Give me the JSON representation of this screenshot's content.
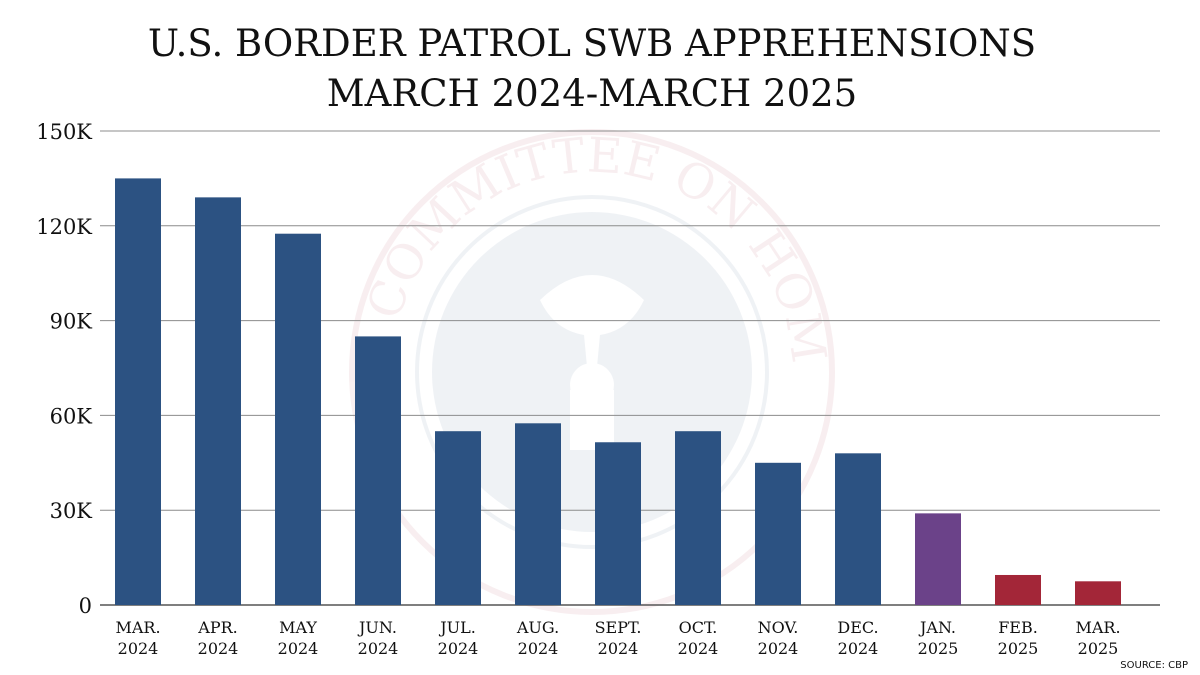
{
  "chart_data": {
    "type": "bar",
    "title": "U.S. BORDER PATROL SWB APPREHENSIONS",
    "subtitle": "MARCH 2024-MARCH 2025",
    "categories": [
      [
        "MAR.",
        "2024"
      ],
      [
        "APR.",
        "2024"
      ],
      [
        "MAY",
        "2024"
      ],
      [
        "JUN.",
        "2024"
      ],
      [
        "JUL.",
        "2024"
      ],
      [
        "AUG.",
        "2024"
      ],
      [
        "SEPT.",
        "2024"
      ],
      [
        "OCT.",
        "2024"
      ],
      [
        "NOV.",
        "2024"
      ],
      [
        "DEC.",
        "2024"
      ],
      [
        "JAN.",
        "2025"
      ],
      [
        "FEB.",
        "2025"
      ],
      [
        "MAR.",
        "2025"
      ]
    ],
    "values": [
      135000,
      129000,
      117500,
      85000,
      55000,
      57500,
      51500,
      55000,
      45000,
      48000,
      29000,
      9500,
      7500
    ],
    "bar_colors": [
      "#2c5282",
      "#2c5282",
      "#2c5282",
      "#2c5282",
      "#2c5282",
      "#2c5282",
      "#2c5282",
      "#2c5282",
      "#2c5282",
      "#2c5282",
      "#6b4289",
      "#a32638",
      "#a32638"
    ],
    "ylim": [
      0,
      150000
    ],
    "yticks": [
      0,
      30000,
      60000,
      90000,
      120000,
      150000
    ],
    "ytick_labels": [
      "0",
      "30K",
      "60K",
      "90K",
      "120K",
      "150K"
    ],
    "xlabel": "",
    "ylabel": "",
    "grid": true,
    "legend": "none",
    "source": "SOURCE: CBP"
  },
  "watermark": {
    "description_icon": "homeland-security-committee-seal",
    "text": "COMMITTEE ON HOMELAND SECURITY"
  }
}
